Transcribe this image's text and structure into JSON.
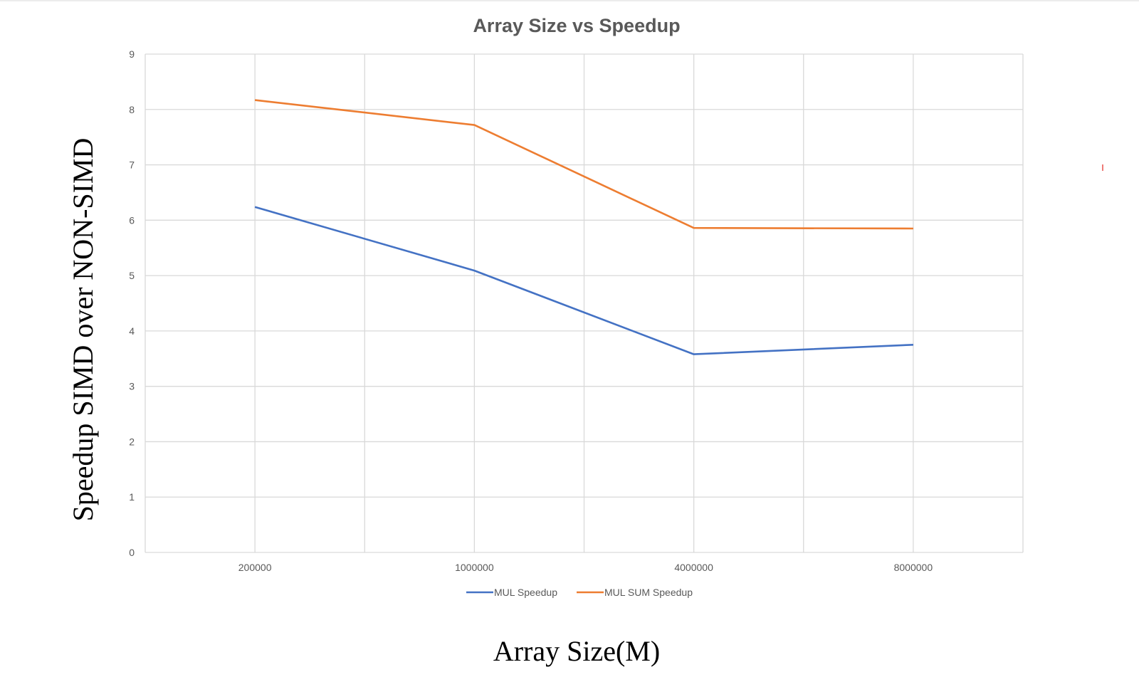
{
  "chart_data": {
    "type": "line",
    "title": "Array Size vs Speedup",
    "xlabel": "Array Size(M)",
    "ylabel": "Speedup SIMD over NON-SIMD",
    "categories": [
      "200000",
      "1000000",
      "4000000",
      "8000000"
    ],
    "ylim": [
      0,
      9
    ],
    "yticks": [
      0,
      1,
      2,
      3,
      4,
      5,
      6,
      7,
      8,
      9
    ],
    "grid": true,
    "legend_position": "bottom",
    "series": [
      {
        "name": "MUL Speedup",
        "color": "#4472c4",
        "values": [
          6.24,
          5.09,
          3.58,
          3.75
        ]
      },
      {
        "name": "MUL SUM Speedup",
        "color": "#ed7d31",
        "values": [
          8.17,
          7.72,
          5.86,
          5.85
        ]
      }
    ]
  }
}
